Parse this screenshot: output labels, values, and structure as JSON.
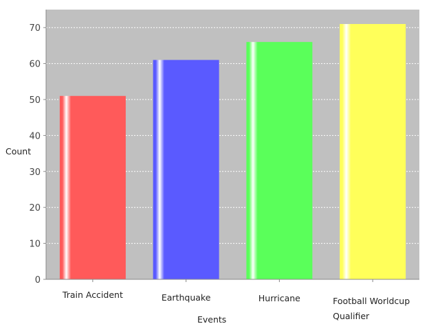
{
  "chart_data": {
    "type": "bar",
    "xlabel": "Events",
    "ylabel": "Count",
    "categories": [
      "Train Accident",
      "Earthquake",
      "Hurricane",
      "Football Worldcup Qualifier"
    ],
    "values": [
      51,
      61,
      66,
      71
    ],
    "ylim": [
      0,
      75
    ],
    "yticks": [
      0,
      10,
      20,
      30,
      40,
      50,
      60,
      70
    ],
    "grid": true,
    "plot_background": "#c0c0c0",
    "colors": [
      "#ff5a5a",
      "#5a5aff",
      "#5aff5a",
      "#ffff5a"
    ]
  }
}
